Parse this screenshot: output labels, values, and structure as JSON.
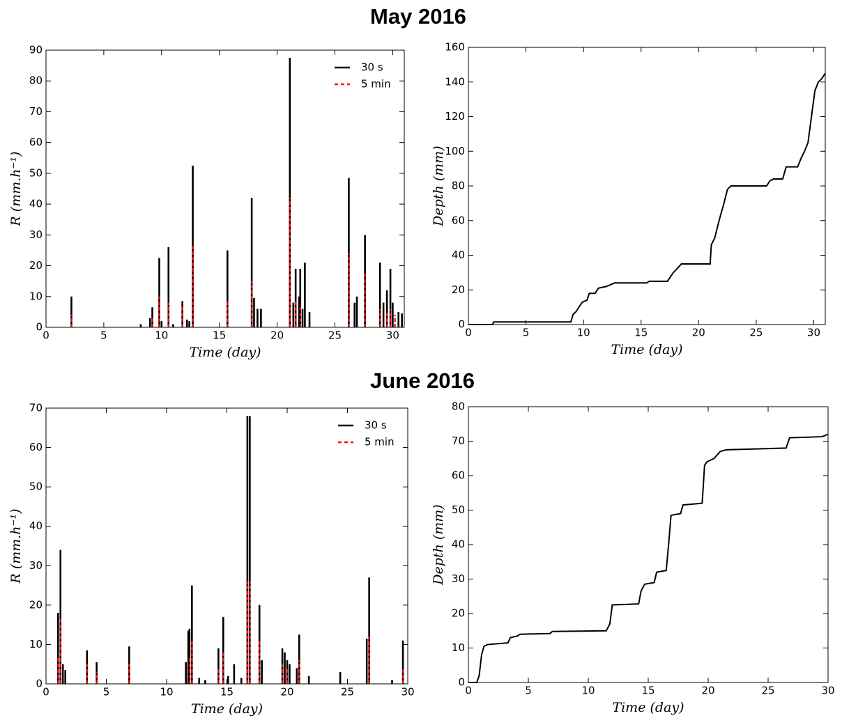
{
  "figure_titles": [
    "May 2016",
    "June 2016"
  ],
  "chart_data": [
    {
      "type": "stem",
      "xlabel": "Time (day)",
      "ylabel": "R (mm.h⁻¹)",
      "xlim": [
        0,
        31
      ],
      "ylim": [
        0,
        90
      ],
      "xticks": [
        0,
        5,
        10,
        15,
        20,
        25,
        30
      ],
      "yticks": [
        0,
        10,
        20,
        30,
        40,
        50,
        60,
        70,
        80,
        90
      ],
      "legend": "upper right",
      "series": [
        {
          "name": "30 s",
          "color": "#000000",
          "dash": false,
          "x": [
            2.2,
            8.2,
            9.0,
            9.2,
            9.8,
            10.0,
            10.6,
            11.0,
            11.8,
            12.2,
            12.4,
            12.7,
            15.7,
            17.8,
            18.0,
            18.3,
            18.6,
            21.1,
            21.4,
            21.6,
            21.9,
            22.0,
            22.2,
            22.4,
            22.8,
            26.2,
            26.7,
            26.9,
            27.6,
            28.9,
            29.2,
            29.5,
            29.8,
            30.0,
            30.5,
            30.8
          ],
          "values": [
            10,
            1,
            3,
            6.5,
            22.5,
            2,
            26,
            1,
            8.5,
            2.5,
            2,
            52.5,
            25,
            42,
            9.5,
            6,
            6,
            87.5,
            8,
            19,
            10,
            19,
            6,
            21,
            5,
            48.5,
            8,
            10,
            30,
            21,
            8,
            12,
            19,
            8,
            5,
            4.5
          ]
        },
        {
          "name": "5 min",
          "color": "#ff0000",
          "dash": true,
          "x": [
            2.2,
            9.2,
            9.8,
            10.6,
            11.8,
            12.7,
            15.7,
            17.8,
            21.1,
            21.6,
            22.0,
            26.2,
            27.6,
            28.9,
            29.5,
            29.8,
            30.2
          ],
          "values": [
            4,
            3,
            10,
            8,
            7,
            27,
            9,
            15,
            42,
            9,
            7,
            24,
            18,
            6,
            5,
            6,
            4
          ]
        }
      ]
    },
    {
      "type": "line",
      "xlabel": "Time (day)",
      "ylabel": "Depth (mm)",
      "xlim": [
        0,
        31
      ],
      "ylim": [
        0,
        160
      ],
      "xticks": [
        0,
        5,
        10,
        15,
        20,
        25,
        30
      ],
      "yticks": [
        0,
        20,
        40,
        60,
        80,
        100,
        120,
        140,
        160
      ],
      "series": [
        {
          "color": "#000000",
          "x": [
            0,
            2.1,
            2.2,
            8.9,
            9.1,
            9.3,
            9.6,
            9.9,
            10.3,
            10.5,
            11,
            11.3,
            12,
            12.7,
            15.5,
            15.7,
            17.3,
            17.8,
            18.1,
            18.5,
            21,
            21.1,
            21.4,
            21.7,
            21.9,
            22.2,
            22.5,
            22.8,
            25.9,
            26.2,
            26.5,
            27.3,
            27.6,
            28.6,
            28.9,
            29.2,
            29.5,
            29.7,
            29.9,
            30.1,
            30.4,
            30.7,
            31
          ],
          "values": [
            0,
            0,
            1.5,
            1.5,
            6,
            7,
            10,
            13,
            14,
            18,
            18,
            21,
            22,
            24,
            24,
            25,
            25,
            30,
            32,
            35,
            35,
            46,
            50,
            58,
            63,
            70,
            78,
            80,
            80,
            83,
            84,
            84,
            91,
            91,
            96,
            100,
            105,
            115,
            125,
            135,
            140,
            142,
            145
          ]
        }
      ]
    },
    {
      "type": "stem",
      "xlabel": "Time (day)",
      "ylabel": "R (mm.h⁻¹)",
      "xlim": [
        0,
        30
      ],
      "ylim": [
        0,
        70
      ],
      "xticks": [
        0,
        5,
        10,
        15,
        20,
        25,
        30
      ],
      "yticks": [
        0,
        10,
        20,
        30,
        40,
        50,
        60,
        70
      ],
      "legend": "upper right",
      "series": [
        {
          "name": "30 s",
          "color": "#000000",
          "dash": false,
          "x": [
            1.0,
            1.2,
            1.4,
            1.6,
            3.4,
            4.2,
            6.9,
            11.6,
            11.8,
            11.9,
            12.1,
            12.7,
            13.2,
            14.3,
            14.7,
            15.1,
            15.6,
            16.2,
            16.7,
            16.9,
            17.7,
            17.9,
            19.6,
            19.8,
            20.0,
            20.2,
            20.8,
            21.0,
            21.8,
            24.4,
            26.6,
            26.8,
            28.7,
            29.6
          ],
          "values": [
            18,
            34,
            5,
            3.5,
            8.5,
            5.5,
            9.5,
            5.5,
            13.5,
            14,
            25,
            1.5,
            1,
            9,
            17,
            2,
            5,
            1.5,
            68,
            68,
            20,
            6,
            9,
            8,
            6,
            5,
            4,
            12.5,
            2,
            3,
            11.5,
            27,
            1,
            11
          ]
        },
        {
          "name": "5 min",
          "color": "#ff0000",
          "dash": true,
          "x": [
            1.0,
            1.2,
            3.4,
            4.2,
            6.9,
            11.9,
            12.1,
            14.3,
            14.7,
            16.7,
            16.9,
            17.7,
            19.6,
            20.0,
            21.0,
            26.8,
            29.6
          ],
          "values": [
            7,
            17,
            5,
            3,
            5,
            7,
            11,
            4,
            8,
            26,
            26,
            11,
            5,
            4,
            6,
            12,
            4
          ]
        }
      ]
    },
    {
      "type": "line",
      "xlabel": "Time (day)",
      "ylabel": "Depth (mm)",
      "xlim": [
        0,
        30
      ],
      "ylim": [
        0,
        80
      ],
      "xticks": [
        0,
        5,
        10,
        15,
        20,
        25,
        30
      ],
      "yticks": [
        0,
        10,
        20,
        30,
        40,
        50,
        60,
        70,
        80
      ],
      "series": [
        {
          "color": "#000000",
          "x": [
            0,
            0.7,
            0.9,
            1.1,
            1.3,
            1.6,
            3.3,
            3.5,
            4.1,
            4.3,
            6.8,
            7,
            11.5,
            11.8,
            12,
            14.2,
            14.4,
            14.7,
            15.5,
            15.7,
            16.5,
            16.7,
            16.9,
            17.7,
            17.9,
            19.5,
            19.7,
            19.9,
            20.5,
            21,
            21.5,
            24.5,
            26.5,
            26.8,
            29.5,
            30
          ],
          "values": [
            0,
            0,
            2,
            8,
            10.5,
            11,
            11.5,
            13,
            13.5,
            14,
            14.2,
            14.8,
            15,
            17,
            22.5,
            22.8,
            26.5,
            28.5,
            29,
            32,
            32.5,
            40,
            48.5,
            49,
            51.5,
            52,
            63,
            64,
            65,
            67,
            67.5,
            67.8,
            68,
            71,
            71.3,
            72
          ]
        }
      ]
    }
  ]
}
